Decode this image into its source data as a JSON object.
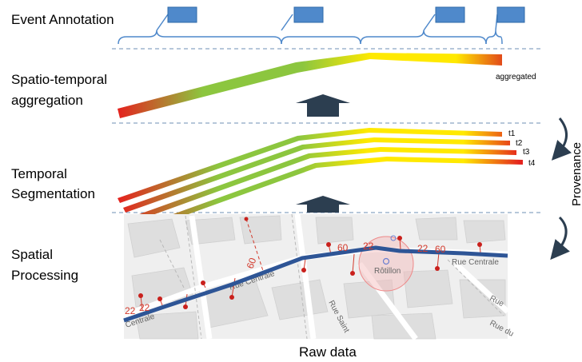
{
  "left_labels": {
    "event_annotation": "Event Annotation",
    "spatio_temporal_line1": "Spatio-temporal",
    "spatio_temporal_line2": "aggregation",
    "temporal_line1": "Temporal",
    "temporal_line2": "Segmentation",
    "spatial_line1": "Spatial",
    "spatial_line2": "Processing"
  },
  "aggregated_label": "aggregated",
  "segment_labels": [
    "t1",
    "t2",
    "t3",
    "t4"
  ],
  "provenance_label": "Provenance",
  "raw_data_label": "Raw data",
  "map": {
    "street_labels": [
      "Rue Centrale",
      "Rue Centrale",
      "Centrale",
      "Rue Saint",
      "Rue",
      "Rue du"
    ],
    "place_label": "Rôtillon",
    "speed_labels": [
      "22",
      "60",
      "22",
      "22",
      "60",
      "60",
      "22"
    ]
  },
  "colors": {
    "heat_red": "#e4231e",
    "heat_green": "#8cc63f",
    "heat_yellow": "#ffe900",
    "route_blue": "#2e5596",
    "annotation_blue": "#4f89cb",
    "arrow_dark": "#2c3e50",
    "divider": "#6e8fb5"
  }
}
